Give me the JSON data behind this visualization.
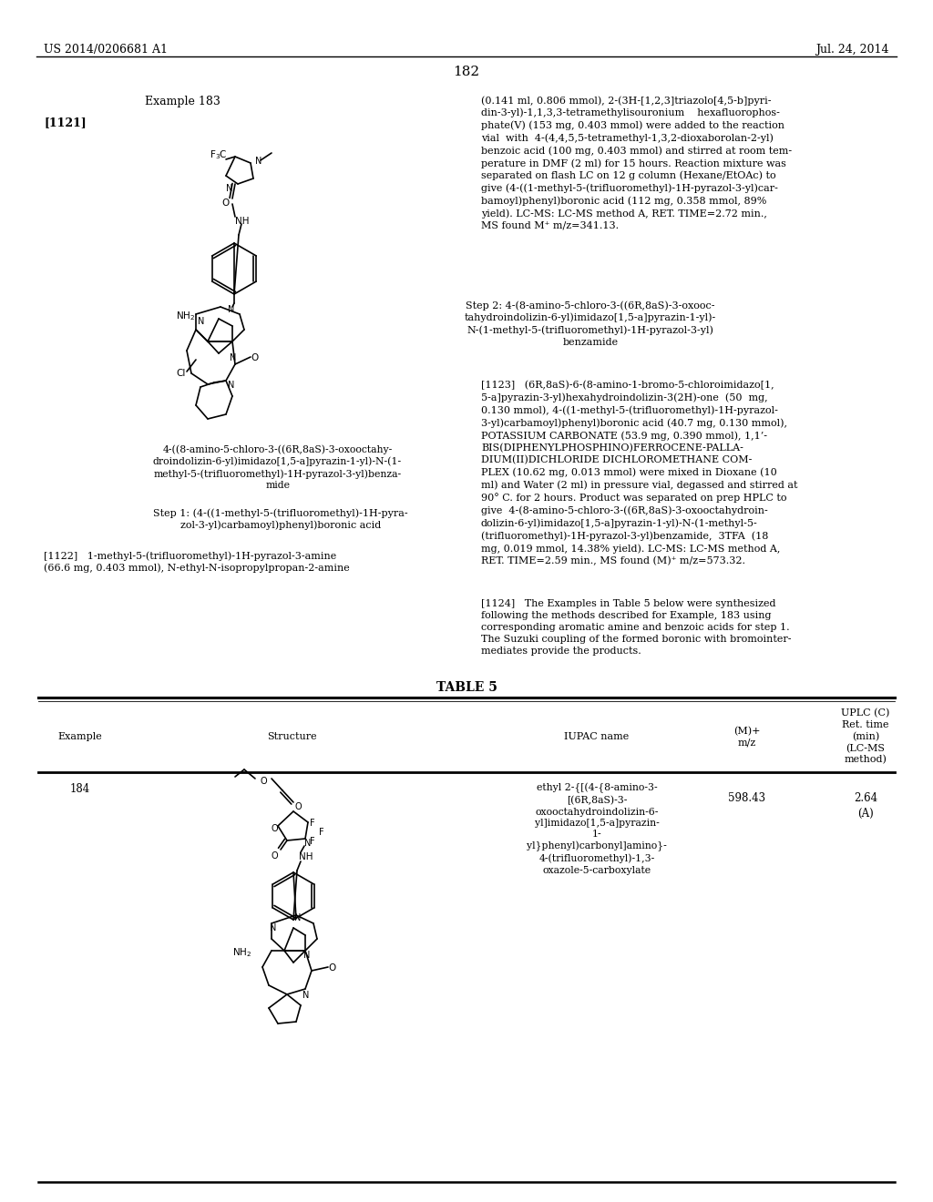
{
  "background_color": "#ffffff",
  "page_number": "182",
  "header_left": "US 2014/0206681 A1",
  "header_right": "Jul. 24, 2014",
  "example_label": "Example 183",
  "paragraph_1121": "[1121]",
  "right_col_para1": "(0.141 ml, 0.806 mmol), 2-(3H-[1,2,3]triazolo[4,5-b]pyri-\ndin-3-yl)-1,1,3,3-tetramethylisouronium    hexafluorophos-\nphate(V) (153 mg, 0.403 mmol) were added to the reaction\nvial  with  4-(4,4,5,5-tetramethyl-1,3,2-dioxaborolan-2-yl)\nbenzoic acid (100 mg, 0.403 mmol) and stirred at room tem-\nperature in DMF (2 ml) for 15 hours. Reaction mixture was\nseparated on flash LC on 12 g column (Hexane/EtOAc) to\ngive (4-((1-methyl-5-(trifluoromethyl)-1H-pyrazol-3-yl)car-\nbamoyl)phenyl)boronic acid (112 mg, 0.358 mmol, 89%\nyield). LC-MS: LC-MS method A, RET. TIME=2.72 min.,\nMS found M⁺ m/z=341.13.",
  "step2_header": "Step 2: 4-(8-amino-5-chloro-3-((6R,8aS)-3-oxooc-\ntahydroindolizin-6-yl)imidazo[1,5-a]pyrazin-1-yl)-\nN-(1-methyl-5-(trifluoromethyl)-1H-pyrazol-3-yl)\nbenzamide",
  "paragraph_1123": "[1123]   (6R,8aS)-6-(8-amino-1-bromo-5-chloroimidazo[1,\n5-a]pyrazin-3-yl)hexahydroindolizin-3(2H)-one  (50  mg,\n0.130 mmol), 4-((1-methyl-5-(trifluoromethyl)-1H-pyrazol-\n3-yl)carbamoyl)phenyl)boronic acid (40.7 mg, 0.130 mmol),\nPOTASSIUM CARBONATE (53.9 mg, 0.390 mmol), 1,1’-\nBIS(DIPHENYLPHOSPHINO)FERROCENE-PALLA-\nDIUM(II)DICHLORIDE DICHLOROMETHANE COM-\nPLEX (10.62 mg, 0.013 mmol) were mixed in Dioxane (10\nml) and Water (2 ml) in pressure vial, degassed and stirred at\n90° C. for 2 hours. Product was separated on prep HPLC to\ngive  4-(8-amino-5-chloro-3-((6R,8aS)-3-oxooctahydroin-\ndolizin-6-yl)imidazo[1,5-a]pyrazin-1-yl)-N-(1-methyl-5-\n(trifluoromethyl)-1H-pyrazol-3-yl)benzamide,  3TFA  (18\nmg, 0.019 mmol, 14.38% yield). LC-MS: LC-MS method A,\nRET. TIME=2.59 min., MS found (M)⁺ m/z=573.32.",
  "paragraph_1124": "[1124]   The Examples in Table 5 below were synthesized\nfollowing the methods described for Example, 183 using\ncorresponding aromatic amine and benzoic acids for step 1.\nThe Suzuki coupling of the formed boronic with bromointer-\nmediates provide the products.",
  "left_caption": "4-((8-amino-5-chloro-3-((6R,8aS)-3-oxooctahy-\ndroindolizin-6-yl)imidazo[1,5-a]pyrazin-1-yl)-N-(1-\nmethyl-5-(trifluoromethyl)-1H-pyrazol-3-yl)benza-\nmide",
  "step1_label": "Step 1: (4-((1-methyl-5-(trifluoromethyl)-1H-pyra-\nzol-3-yl)carbamoyl)phenyl)boronic acid",
  "paragraph_1122": "[1122]   1-methyl-5-(trifluoromethyl)-1H-pyrazol-3-amine\n(66.6 mg, 0.403 mmol), N-ethyl-N-isopropylpropan-2-amine",
  "table_title": "TABLE 5",
  "table_row_example": "184",
  "table_row_iupac": "ethyl 2-{[(4-{8-amino-3-\n[(6R,8aS)-3-\noxooctahydroindolizin-6-\nyl]imidazo[1,5-a]pyrazin-\n1-\nyl}phenyl)carbonyl]amino}-\n4-(trifluoromethyl)-1,3-\noxazole-5-carboxylate",
  "table_row_mz": "598.43",
  "table_row_uplc": "2.64\n(A)",
  "col_headers_text": [
    "Example",
    "Structure",
    "IUPAC name",
    "(M)+\nm/z",
    "UPLC (C)\nRet. time\n(min)\n(LC-MS\nmethod)"
  ]
}
